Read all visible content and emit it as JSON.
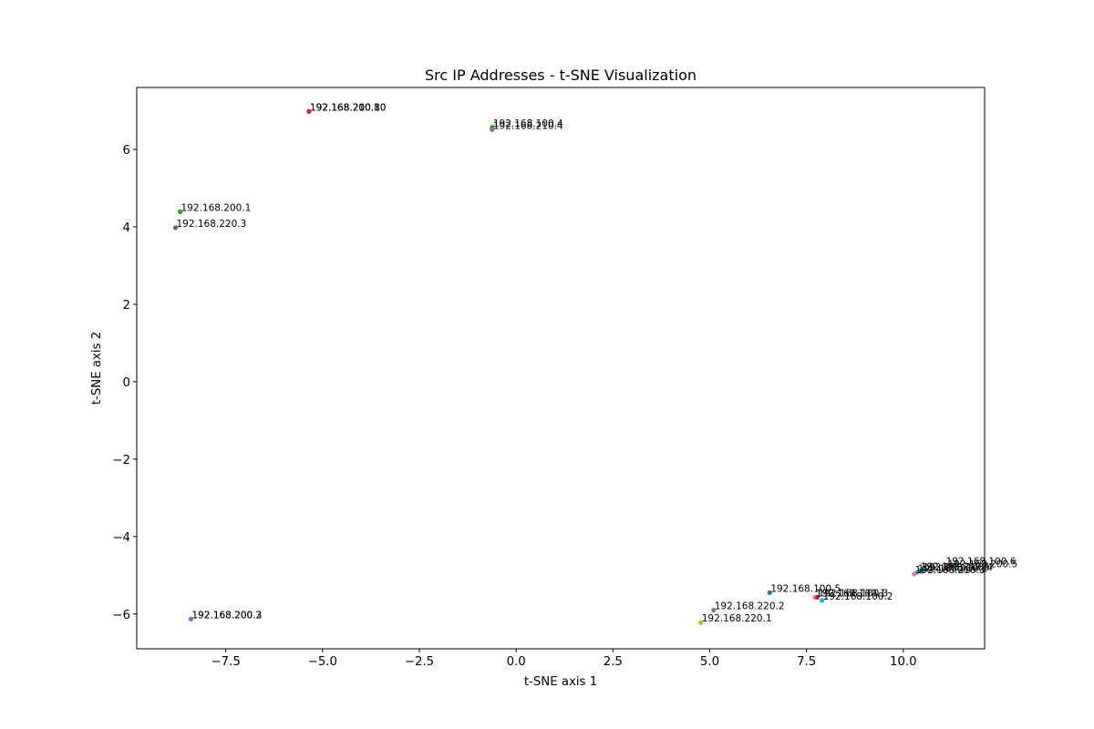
{
  "chart_data": {
    "type": "scatter",
    "title": "Src IP Addresses - t-SNE Visualization",
    "xlabel": "t-SNE axis 1",
    "ylabel": "t-SNE axis 2",
    "xlim": [
      -9.8,
      12.1
    ],
    "ylim": [
      -6.9,
      7.6
    ],
    "xticks": [
      {
        "value": -7.5,
        "label": "−7.5"
      },
      {
        "value": -5.0,
        "label": "−5.0"
      },
      {
        "value": -2.5,
        "label": "−2.5"
      },
      {
        "value": 0.0,
        "label": "0.0"
      },
      {
        "value": 2.5,
        "label": "2.5"
      },
      {
        "value": 5.0,
        "label": "5.0"
      },
      {
        "value": 7.5,
        "label": "7.5"
      },
      {
        "value": 10.0,
        "label": "10.0"
      }
    ],
    "yticks": [
      {
        "value": -6,
        "label": "−6"
      },
      {
        "value": -4,
        "label": "−4"
      },
      {
        "value": -2,
        "label": "−2"
      },
      {
        "value": 0,
        "label": "0"
      },
      {
        "value": 2,
        "label": "2"
      },
      {
        "value": 4,
        "label": "4"
      },
      {
        "value": 6,
        "label": "6"
      }
    ],
    "grid": false,
    "points": [
      {
        "label": "192.168.200.10",
        "x": -5.35,
        "y": 6.98,
        "color": "#1f77b4"
      },
      {
        "label": "192.168.210.10",
        "x": -5.35,
        "y": 6.98,
        "color": "#2ca02c"
      },
      {
        "label": "192.168.200.8",
        "x": -5.35,
        "y": 6.98,
        "color": "#d62728"
      },
      {
        "label": "192.168.100.4",
        "x": -0.62,
        "y": 6.57,
        "color": "#2ca02c"
      },
      {
        "label": "192.168.210.4",
        "x": -0.62,
        "y": 6.51,
        "color": "#7f7f7f"
      },
      {
        "label": "192.168.200.1",
        "x": -8.68,
        "y": 4.39,
        "color": "#2ca02c"
      },
      {
        "label": "192.168.220.3",
        "x": -8.8,
        "y": 3.98,
        "color": "#8c564b"
      },
      {
        "label": "192.168.200.2",
        "x": -8.4,
        "y": -6.13,
        "color": "#9467bd"
      },
      {
        "label": "192.168.200.3",
        "x": -8.4,
        "y": -6.13,
        "color": "#9467bd"
      },
      {
        "label": "192.168.100.5",
        "x": 6.55,
        "y": -5.45,
        "color": "#1f77b4"
      },
      {
        "label": "192.168.220.2",
        "x": 5.1,
        "y": -5.9,
        "color": "#7f7f7f"
      },
      {
        "label": "192.168.220.1",
        "x": 4.77,
        "y": -6.22,
        "color": "#bcbd22"
      },
      {
        "label": "192.168.100.1",
        "x": 7.72,
        "y": -5.57,
        "color": "#e377c2"
      },
      {
        "label": "192.168.100.3",
        "x": 7.78,
        "y": -5.57,
        "color": "#d62728"
      },
      {
        "label": "192.168.100.2",
        "x": 7.9,
        "y": -5.65,
        "color": "#17becf"
      },
      {
        "label": "192.168.100.6",
        "x": 11.08,
        "y": -4.75,
        "color": "#ff7f0e"
      },
      {
        "label": "192.168.210.1",
        "x": 10.42,
        "y": -4.89,
        "color": "#2ca02c"
      },
      {
        "label": "192.168.210.2",
        "x": 10.35,
        "y": -4.93,
        "color": "#17becf"
      },
      {
        "label": "192.168.210.3",
        "x": 10.28,
        "y": -4.97,
        "color": "#e377c2"
      },
      {
        "label": "192.168.200.4",
        "x": 10.48,
        "y": -4.9,
        "color": "#1f77b4"
      },
      {
        "label": "192.168.200.5",
        "x": 11.12,
        "y": -4.82,
        "color": "#8c564b"
      }
    ]
  }
}
